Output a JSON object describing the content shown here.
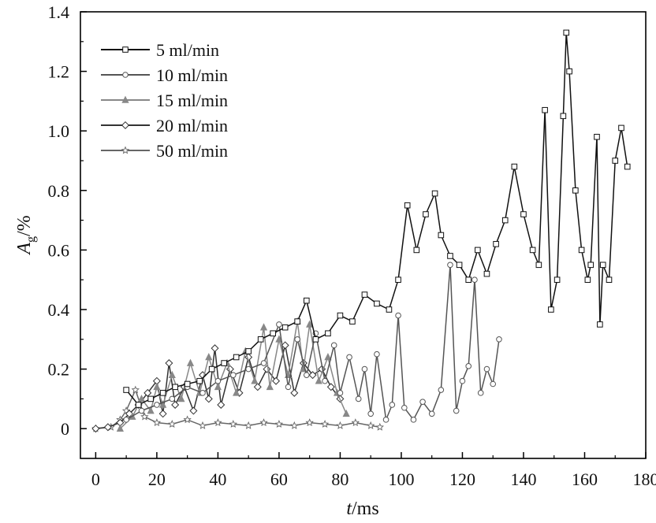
{
  "chart_data": {
    "type": "line",
    "title": "",
    "xlabel": "t/ms",
    "xlabel_parts": {
      "var": "t",
      "unit": "/ms"
    },
    "ylabel": "Ag/%",
    "ylabel_parts": {
      "var": "A",
      "sub": "g",
      "unit": "/%"
    },
    "xlim": [
      -5,
      180
    ],
    "ylim": [
      -0.1,
      1.4
    ],
    "xticks": [
      0,
      20,
      40,
      60,
      80,
      100,
      120,
      140,
      160,
      180
    ],
    "xtick_labels": [
      "0",
      "20",
      "40",
      "60",
      "80",
      "100",
      "120",
      "140",
      "160",
      "180"
    ],
    "yticks": [
      0,
      0.2,
      0.4,
      0.6,
      0.8,
      1.0,
      1.2,
      1.4
    ],
    "ytick_labels": [
      "0",
      "0.2",
      "0.4",
      "0.6",
      "0.8",
      "1.0",
      "1.2",
      "1.4"
    ],
    "grid": false,
    "legend_position": "top-left",
    "series": [
      {
        "name": "50 ml/min",
        "color": "#666666",
        "marker": "star",
        "x": [
          0,
          5,
          8,
          10,
          13,
          16,
          20,
          25,
          30,
          35,
          40,
          45,
          50,
          55,
          60,
          65,
          70,
          75,
          80,
          85,
          90,
          93
        ],
        "values": [
          0.0,
          0.005,
          0.03,
          0.06,
          0.13,
          0.04,
          0.02,
          0.015,
          0.03,
          0.01,
          0.02,
          0.015,
          0.01,
          0.02,
          0.015,
          0.01,
          0.02,
          0.015,
          0.01,
          0.02,
          0.01,
          0.005
        ]
      },
      {
        "name": "20 ml/min",
        "color": "#333333",
        "marker": "diamond",
        "x": [
          0,
          4,
          8,
          11,
          14,
          17,
          20,
          22,
          24,
          26,
          29,
          32,
          35,
          37,
          39,
          41,
          44,
          47,
          50,
          53,
          56,
          59,
          62,
          65,
          68,
          71,
          74,
          77,
          80
        ],
        "values": [
          0.0,
          0.005,
          0.02,
          0.05,
          0.08,
          0.12,
          0.16,
          0.05,
          0.22,
          0.08,
          0.14,
          0.06,
          0.18,
          0.1,
          0.27,
          0.08,
          0.2,
          0.12,
          0.24,
          0.14,
          0.2,
          0.16,
          0.28,
          0.12,
          0.22,
          0.18,
          0.2,
          0.14,
          0.1
        ]
      },
      {
        "name": "15 ml/min",
        "color": "#888888",
        "marker": "triangle",
        "x": [
          8,
          12,
          15,
          18,
          20,
          22,
          25,
          28,
          31,
          34,
          37,
          40,
          43,
          46,
          49,
          52,
          55,
          57,
          60,
          63,
          66,
          68,
          70,
          73,
          76,
          79,
          82
        ],
        "values": [
          0.0,
          0.04,
          0.1,
          0.06,
          0.14,
          0.08,
          0.18,
          0.1,
          0.22,
          0.12,
          0.24,
          0.14,
          0.22,
          0.12,
          0.26,
          0.16,
          0.34,
          0.14,
          0.3,
          0.18,
          0.36,
          0.2,
          0.35,
          0.16,
          0.24,
          0.12,
          0.05
        ]
      },
      {
        "name": "10 ml/min",
        "color": "#555555",
        "marker": "circle",
        "x": [
          10,
          15,
          20,
          25,
          30,
          35,
          40,
          45,
          50,
          55,
          60,
          63,
          66,
          69,
          72,
          75,
          78,
          80,
          83,
          86,
          88,
          90,
          92,
          95,
          97,
          99,
          101,
          104,
          107,
          110,
          113,
          116,
          118,
          120,
          122,
          124,
          126,
          128,
          130,
          132
        ],
        "values": [
          0.03,
          0.06,
          0.08,
          0.1,
          0.14,
          0.12,
          0.16,
          0.18,
          0.2,
          0.22,
          0.35,
          0.14,
          0.3,
          0.18,
          0.32,
          0.16,
          0.28,
          0.12,
          0.24,
          0.1,
          0.2,
          0.05,
          0.25,
          0.03,
          0.08,
          0.38,
          0.07,
          0.03,
          0.09,
          0.05,
          0.13,
          0.55,
          0.06,
          0.16,
          0.21,
          0.5,
          0.12,
          0.2,
          0.15,
          0.3
        ]
      },
      {
        "name": "5 ml/min",
        "color": "#111111",
        "marker": "square",
        "x": [
          10,
          14,
          18,
          22,
          26,
          30,
          34,
          38,
          42,
          46,
          50,
          54,
          58,
          62,
          66,
          69,
          72,
          76,
          80,
          84,
          88,
          92,
          96,
          99,
          102,
          105,
          108,
          111,
          113,
          116,
          119,
          122,
          125,
          128,
          131,
          134,
          137,
          140,
          143,
          145,
          147,
          149,
          151,
          153,
          154,
          155,
          157,
          159,
          161,
          162,
          164,
          165,
          166,
          168,
          170,
          172,
          174
        ],
        "values": [
          0.13,
          0.08,
          0.1,
          0.12,
          0.14,
          0.15,
          0.16,
          0.2,
          0.22,
          0.24,
          0.26,
          0.3,
          0.32,
          0.34,
          0.36,
          0.43,
          0.3,
          0.32,
          0.38,
          0.36,
          0.45,
          0.42,
          0.4,
          0.5,
          0.75,
          0.6,
          0.72,
          0.79,
          0.65,
          0.58,
          0.55,
          0.5,
          0.6,
          0.52,
          0.62,
          0.7,
          0.88,
          0.72,
          0.6,
          0.55,
          1.07,
          0.4,
          0.5,
          1.05,
          1.33,
          1.2,
          0.8,
          0.6,
          0.5,
          0.55,
          0.98,
          0.35,
          0.55,
          0.5,
          0.9,
          1.01,
          0.88
        ]
      }
    ]
  }
}
